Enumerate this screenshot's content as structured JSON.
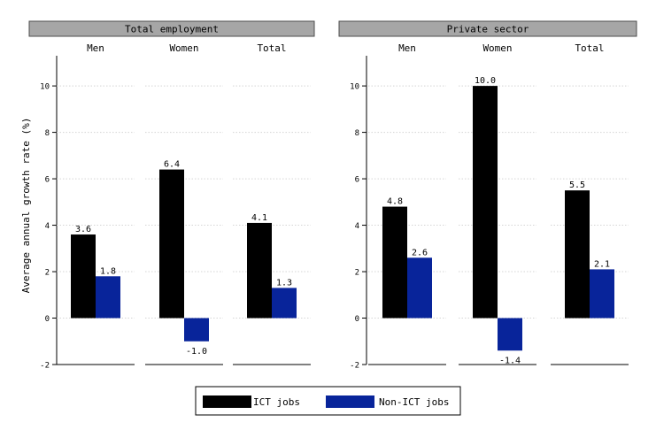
{
  "chart_data": {
    "type": "bar",
    "ylabel": "Average annual growth rate (%)",
    "xlabel": "",
    "ylim": [
      -2,
      11.3
    ],
    "yticks": [
      -2,
      0,
      2,
      4,
      6,
      8,
      10
    ],
    "ytick_labels": [
      "-2",
      "0",
      "2",
      "4",
      "6",
      "8",
      "10"
    ],
    "grid": "horizontal dotted",
    "legend_position": "bottom-center",
    "series": [
      {
        "name": "ICT jobs",
        "color": "#000000"
      },
      {
        "name": "Non-ICT jobs",
        "color": "#08249a"
      }
    ],
    "panels": [
      {
        "title": "Total employment",
        "groups": [
          {
            "label": "Men",
            "values": [
              3.6,
              1.8
            ],
            "value_labels": [
              "3.6",
              "1.8"
            ]
          },
          {
            "label": "Women",
            "values": [
              6.4,
              -1.0
            ],
            "value_labels": [
              "6.4",
              "-1.0"
            ]
          },
          {
            "label": "Total",
            "values": [
              4.1,
              1.3
            ],
            "value_labels": [
              "4.1",
              "1.3"
            ]
          }
        ]
      },
      {
        "title": "Private sector",
        "groups": [
          {
            "label": "Men",
            "values": [
              4.8,
              2.6
            ],
            "value_labels": [
              "4.8",
              "2.6"
            ]
          },
          {
            "label": "Women",
            "values": [
              10.0,
              -1.4
            ],
            "value_labels": [
              "10.0",
              "-1.4"
            ]
          },
          {
            "label": "Total",
            "values": [
              5.5,
              2.1
            ],
            "value_labels": [
              "5.5",
              "2.1"
            ]
          }
        ]
      }
    ]
  }
}
